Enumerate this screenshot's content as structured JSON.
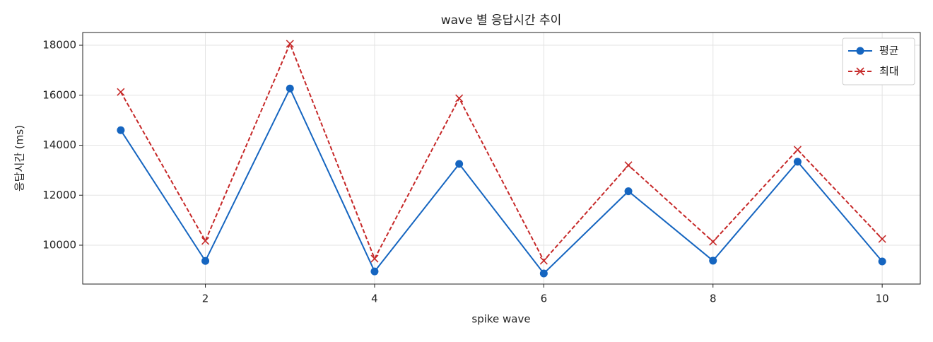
{
  "chart_data": {
    "type": "line",
    "title": "wave 별 응답시간 추이",
    "xlabel": "spike wave",
    "ylabel": "응답시간 (ms)",
    "x": [
      1,
      2,
      3,
      4,
      5,
      6,
      7,
      8,
      9,
      10
    ],
    "series": [
      {
        "name": "평균",
        "color": "#1565c0",
        "marker": "o",
        "linestyle": "solid",
        "values": [
          14600,
          9370,
          16270,
          8950,
          13250,
          8870,
          12160,
          9380,
          13340,
          9350
        ]
      },
      {
        "name": "최대",
        "color": "#c62828",
        "marker": "x",
        "linestyle": "dashed",
        "values": [
          16130,
          10170,
          18060,
          9460,
          15880,
          9380,
          13200,
          10140,
          13820,
          10250
        ]
      }
    ],
    "xlim": [
      0.55,
      10.45
    ],
    "xticks": [
      2,
      4,
      6,
      8,
      10
    ],
    "ylim": [
      8445,
      18510
    ],
    "yticks": [
      10000,
      12000,
      14000,
      16000,
      18000
    ],
    "grid": true,
    "legend": "upper right"
  }
}
